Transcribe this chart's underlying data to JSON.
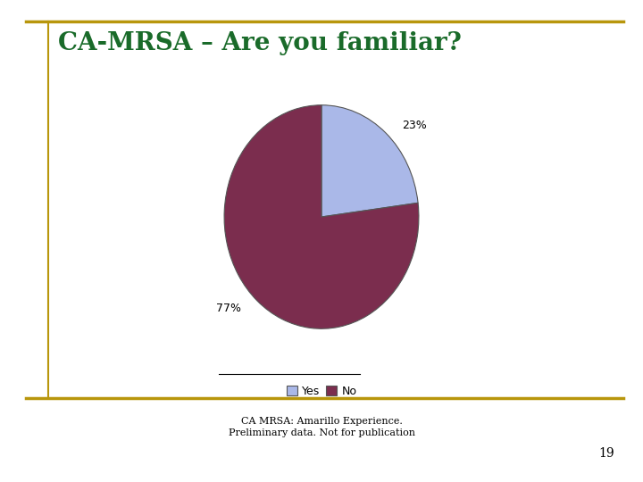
{
  "title": "CA-MRSA – Are you familiar?",
  "title_color": "#1a6b2a",
  "title_fontsize": 20,
  "title_fontstyle": "bold",
  "slices": [
    23,
    77
  ],
  "labels": [
    "Yes",
    "No"
  ],
  "colors": [
    "#aab8e8",
    "#7b2d4e"
  ],
  "pct_labels": [
    "23%",
    "77%"
  ],
  "legend_labels": [
    "Yes",
    "No"
  ],
  "legend_colors": [
    "#aab8e8",
    "#7b2d4e"
  ],
  "footer_line1": "CA MRSA: Amarillo Experience.",
  "footer_line2": "Preliminary data. Not for publication",
  "footer_fontsize": 8,
  "page_number": "19",
  "border_color": "#b8960c",
  "background_color": "#ffffff",
  "startangle": 90
}
